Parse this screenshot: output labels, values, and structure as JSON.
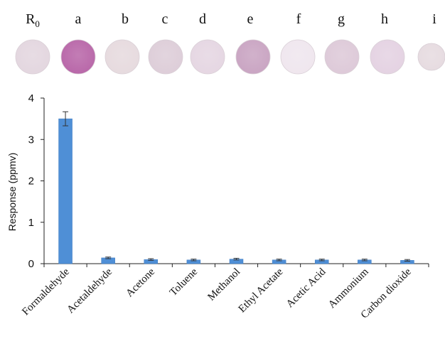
{
  "samples": {
    "labels": [
      {
        "main": "R",
        "sub": "0"
      },
      {
        "main": "a",
        "sub": ""
      },
      {
        "main": "b",
        "sub": ""
      },
      {
        "main": "c",
        "sub": ""
      },
      {
        "main": "d",
        "sub": ""
      },
      {
        "main": "e",
        "sub": ""
      },
      {
        "main": "f",
        "sub": ""
      },
      {
        "main": "g",
        "sub": ""
      },
      {
        "main": "h",
        "sub": ""
      },
      {
        "main": "i",
        "sub": ""
      }
    ],
    "colors": [
      "#e3d6df",
      "#b866a8",
      "#e6dade",
      "#ddcdd8",
      "#e5d6e2",
      "#c9a4c2",
      "#efe6ee",
      "#ddc9d8",
      "#e4d2e2",
      "#e6dbe0"
    ]
  },
  "chart_data": {
    "type": "bar",
    "categories": [
      "Formaldehyde",
      "Acetaldehyde",
      "Acetone",
      "Toluene",
      "Methanol",
      "Ethyl Acetate",
      "Acetic Acid",
      "Ammonium",
      "Carbon dioxide"
    ],
    "values": [
      3.5,
      0.14,
      0.1,
      0.09,
      0.11,
      0.09,
      0.09,
      0.09,
      0.08
    ],
    "errors": [
      0.17,
      0.02,
      0.02,
      0.02,
      0.02,
      0.02,
      0.02,
      0.02,
      0.02
    ],
    "title": "",
    "xlabel": "",
    "ylabel": "Response (ppmv)",
    "ylim": [
      0,
      4
    ],
    "yticks": [
      "0",
      "1",
      "2",
      "3",
      "4"
    ],
    "bar_color": "#4f8fd6",
    "grid": false
  }
}
